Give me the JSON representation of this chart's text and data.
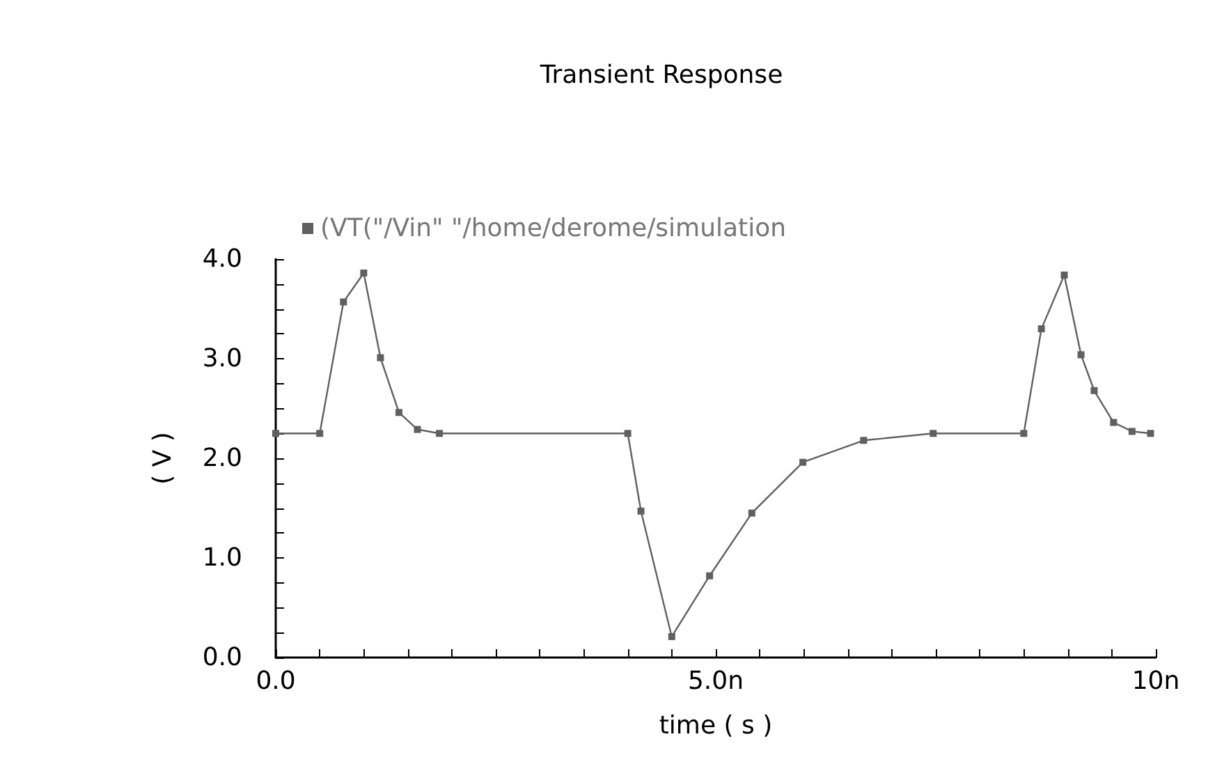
{
  "chart_data": {
    "type": "line",
    "title": "Transient Response",
    "xlabel": "time ( s )",
    "ylabel": "( V )",
    "xlim": [
      0,
      10
    ],
    "ylim": [
      0,
      4
    ],
    "xticks": [
      {
        "value": 0,
        "label": "0.0"
      },
      {
        "value": 0.5,
        "label": null
      },
      {
        "value": 1,
        "label": null
      },
      {
        "value": 1.5,
        "label": null
      },
      {
        "value": 2,
        "label": null
      },
      {
        "value": 2.5,
        "label": null
      },
      {
        "value": 3,
        "label": null
      },
      {
        "value": 3.5,
        "label": null
      },
      {
        "value": 4,
        "label": null
      },
      {
        "value": 4.5,
        "label": null
      },
      {
        "value": 5,
        "label": "5.0n"
      },
      {
        "value": 5.5,
        "label": null
      },
      {
        "value": 6,
        "label": null
      },
      {
        "value": 6.5,
        "label": null
      },
      {
        "value": 7,
        "label": null
      },
      {
        "value": 7.5,
        "label": null
      },
      {
        "value": 8,
        "label": null
      },
      {
        "value": 8.5,
        "label": null
      },
      {
        "value": 9,
        "label": null
      },
      {
        "value": 9.5,
        "label": null
      },
      {
        "value": 10,
        "label": "10n"
      }
    ],
    "yticks": [
      {
        "value": 0,
        "label": "0.0"
      },
      {
        "value": 0.25,
        "label": null
      },
      {
        "value": 0.5,
        "label": null
      },
      {
        "value": 0.75,
        "label": null
      },
      {
        "value": 1,
        "label": "1.0"
      },
      {
        "value": 1.25,
        "label": null
      },
      {
        "value": 1.5,
        "label": null
      },
      {
        "value": 1.75,
        "label": null
      },
      {
        "value": 2,
        "label": "2.0"
      },
      {
        "value": 2.25,
        "label": null
      },
      {
        "value": 2.5,
        "label": null
      },
      {
        "value": 2.75,
        "label": null
      },
      {
        "value": 3,
        "label": "3.0"
      },
      {
        "value": 3.25,
        "label": null
      },
      {
        "value": 3.5,
        "label": null
      },
      {
        "value": 3.75,
        "label": null
      },
      {
        "value": 4,
        "label": "4.0"
      }
    ],
    "grid": false,
    "legend": "top",
    "marker": "square",
    "line_style": "solid",
    "series": [
      {
        "name": "(VT(\"/Vin\" \"/home/derome/simulation",
        "color": "#606060",
        "x": [
          0,
          0.5,
          0.77,
          1,
          1.19,
          1.4,
          1.61,
          1.86,
          4,
          4.15,
          4.5,
          4.93,
          5.41,
          5.99,
          6.68,
          7.47,
          8.5,
          8.7,
          8.96,
          9.15,
          9.3,
          9.52,
          9.73,
          9.94
        ],
        "values": [
          2.25,
          2.25,
          3.57,
          3.86,
          3.01,
          2.46,
          2.29,
          2.25,
          2.25,
          1.47,
          0.21,
          0.82,
          1.45,
          1.96,
          2.18,
          2.25,
          2.25,
          3.3,
          3.84,
          3.04,
          2.68,
          2.36,
          2.27,
          2.25
        ]
      }
    ]
  }
}
